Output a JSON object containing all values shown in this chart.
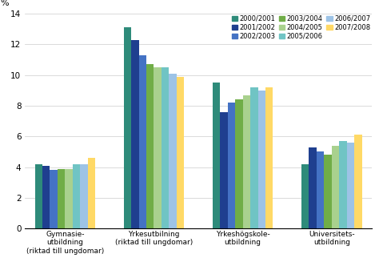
{
  "categories": [
    "Gymnasie-\nutbildning\n(riktad till ungdomar)",
    "Yrkesutbilning\n(riktad till ungdomar)",
    "Yrkeshögskole-\nutbildning",
    "Universitets-\nutbildning"
  ],
  "series": [
    {
      "label": "2000/2001",
      "color": "#2E8B7A",
      "values": [
        4.2,
        13.1,
        9.5,
        4.2
      ]
    },
    {
      "label": "2001/2002",
      "color": "#1F3F8F",
      "values": [
        4.1,
        12.3,
        7.6,
        5.3
      ]
    },
    {
      "label": "2002/2003",
      "color": "#4472C4",
      "values": [
        3.8,
        11.3,
        8.2,
        5.0
      ]
    },
    {
      "label": "2003/2004",
      "color": "#70AD47",
      "values": [
        3.9,
        10.7,
        8.4,
        4.8
      ]
    },
    {
      "label": "2004/2005",
      "color": "#A9D18E",
      "values": [
        3.9,
        10.5,
        8.7,
        5.4
      ]
    },
    {
      "label": "2005/2006",
      "color": "#70C4C4",
      "values": [
        4.2,
        10.5,
        9.2,
        5.7
      ]
    },
    {
      "label": "2006/2007",
      "color": "#9DC3E6",
      "values": [
        4.2,
        10.1,
        9.0,
        5.6
      ]
    },
    {
      "label": "2007/2008",
      "color": "#FFD966",
      "values": [
        4.6,
        9.9,
        9.2,
        6.1
      ]
    }
  ],
  "ylabel": "%",
  "ylim": [
    0,
    14
  ],
  "yticks": [
    0,
    2,
    4,
    6,
    8,
    10,
    12,
    14
  ],
  "bar_width": 0.085,
  "background_color": "#ffffff",
  "figsize": [
    4.69,
    3.22
  ],
  "dpi": 100
}
